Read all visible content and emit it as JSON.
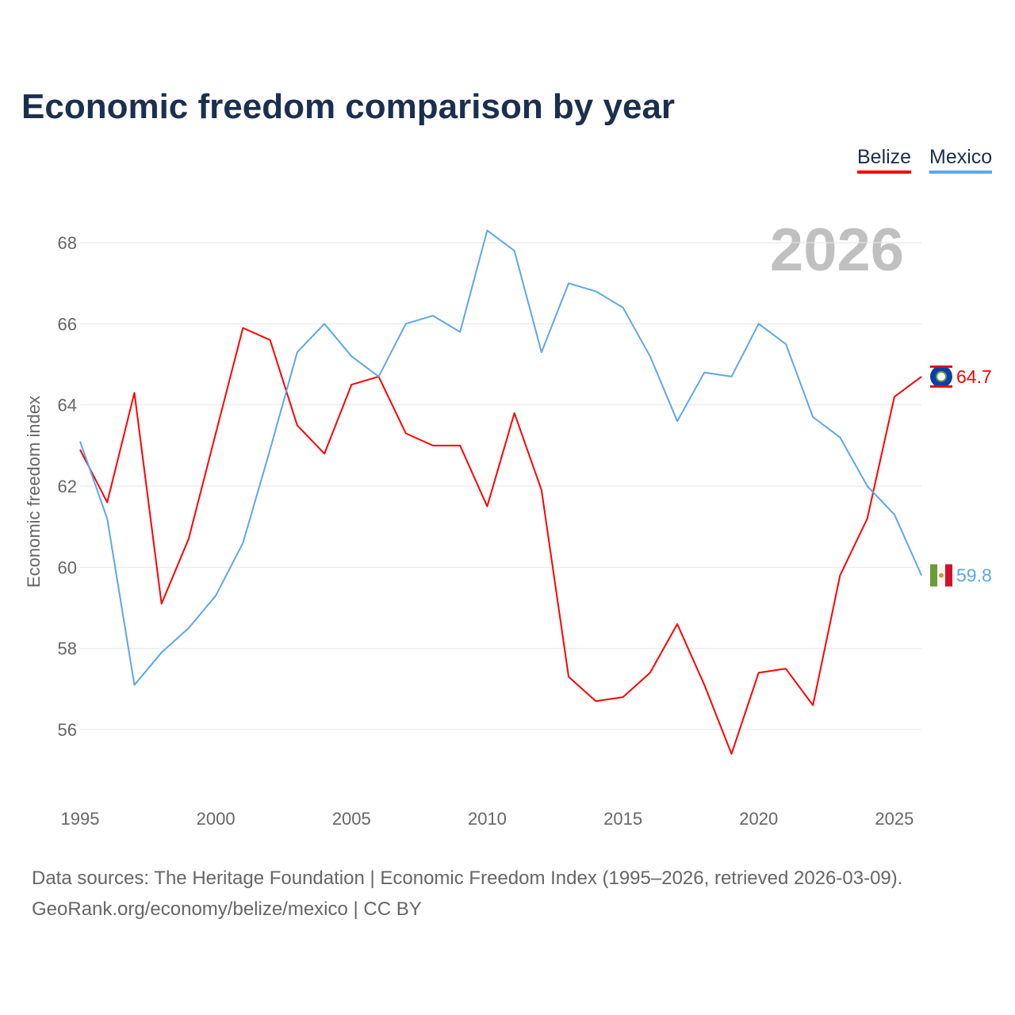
{
  "chart_data": {
    "type": "line",
    "title": "Economic freedom comparison by year",
    "xlabel": "",
    "ylabel": "Economic freedom index",
    "watermark_year": "2026",
    "x": [
      1995,
      1996,
      1997,
      1998,
      1999,
      2000,
      2001,
      2002,
      2003,
      2004,
      2005,
      2006,
      2007,
      2008,
      2009,
      2010,
      2011,
      2012,
      2013,
      2014,
      2015,
      2016,
      2017,
      2018,
      2019,
      2020,
      2021,
      2022,
      2023,
      2024,
      2025,
      2026
    ],
    "xticks": [
      "1995",
      "2000",
      "2005",
      "2010",
      "2015",
      "2020",
      "2025"
    ],
    "yticks": [
      "56",
      "58",
      "60",
      "62",
      "64",
      "66",
      "68"
    ],
    "xlim": [
      1995,
      2026
    ],
    "ylim": [
      54.5,
      69
    ],
    "grid": true,
    "legend_position": "top-right",
    "series": [
      {
        "name": "Belize",
        "color": "#ff0000",
        "end_label": "64.7",
        "values": [
          62.9,
          61.6,
          64.3,
          59.1,
          60.7,
          63.3,
          65.9,
          65.6,
          63.5,
          62.8,
          64.5,
          64.7,
          63.3,
          63.0,
          63.0,
          61.5,
          63.8,
          61.9,
          57.3,
          56.7,
          56.8,
          57.4,
          58.6,
          57.1,
          55.4,
          57.4,
          57.5,
          56.6,
          59.8,
          61.2,
          64.2,
          64.7
        ]
      },
      {
        "name": "Mexico",
        "color": "#5da7ea",
        "end_label": "59.8",
        "values": [
          63.1,
          61.2,
          57.1,
          57.9,
          58.5,
          59.3,
          60.6,
          62.9,
          65.3,
          66.0,
          65.2,
          64.7,
          66.0,
          66.2,
          65.8,
          68.3,
          67.8,
          65.3,
          67.0,
          66.8,
          66.4,
          65.2,
          63.6,
          64.8,
          64.7,
          66.0,
          65.5,
          63.7,
          63.2,
          62.0,
          61.3,
          59.8
        ]
      }
    ]
  },
  "source": {
    "line1": "Data sources: The Heritage Foundation | Economic Freedom Index (1995–2026, retrieved 2026-03-09).",
    "line2": "GeoRank.org/economy/belize/mexico | CC BY"
  }
}
